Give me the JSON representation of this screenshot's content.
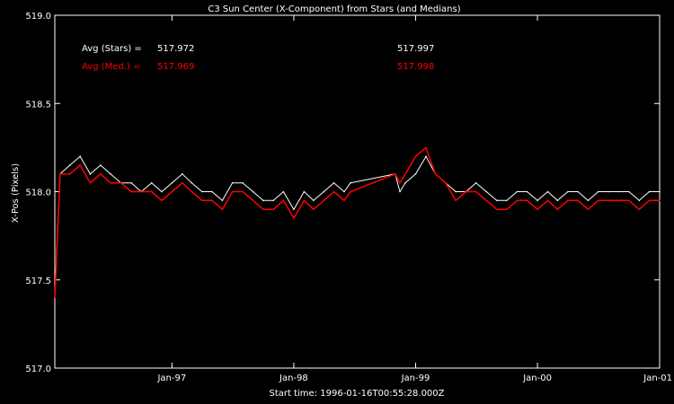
{
  "chart_data": {
    "type": "line",
    "title": "C3 Sun Center (X-Component) from Stars (and Medians)",
    "ylabel": "X-Pos (Pixels)",
    "xlabel": "Start time: 1996-01-16T00:55:28.000Z",
    "ylim": [
      517.0,
      519.0
    ],
    "yticks": [
      "517.0",
      "517.5",
      "518.0",
      "518.5",
      "519.0"
    ],
    "ytick_values": [
      517.0,
      517.5,
      518.0,
      518.5,
      519.0
    ],
    "xlim": [
      "1996-01-16",
      "2001-01-01"
    ],
    "xticks": [
      "Jan-97",
      "Jan-98",
      "Jan-99",
      "Jan-00",
      "Jan-01"
    ],
    "xtick_dates": [
      "1997-01-01",
      "1998-01-01",
      "1999-01-01",
      "2000-01-01",
      "2001-01-01"
    ],
    "annotations": {
      "stars_label": "Avg (Stars) =",
      "stars_value_1": "517.972",
      "stars_value_2": "517.997",
      "medians_label": "Avg (Med.) =",
      "medians_value_1": "517.969",
      "medians_value_2": "517.998"
    },
    "series": [
      {
        "color": "#ffffff",
        "x": [
          "1996-01-16",
          "1996-02-01",
          "1996-03-01",
          "1996-04-01",
          "1996-05-01",
          "1996-06-01",
          "1996-07-01",
          "1996-08-01",
          "1996-09-01",
          "1996-10-01",
          "1996-11-01",
          "1996-12-01",
          "1997-01-01",
          "1997-02-01",
          "1997-03-01",
          "1997-04-01",
          "1997-05-01",
          "1997-06-01",
          "1997-07-01",
          "1997-08-01",
          "1997-09-01",
          "1997-10-01",
          "1997-11-01",
          "1997-12-01",
          "1998-01-01",
          "1998-02-01",
          "1998-03-01",
          "1998-04-01",
          "1998-05-01",
          "1998-06-01",
          "1998-06-20",
          "1998-11-01",
          "1998-11-15",
          "1998-12-01",
          "1999-01-01",
          "1999-02-01",
          "1999-03-01",
          "1999-04-01",
          "1999-05-01",
          "1999-06-01",
          "1999-07-01",
          "1999-08-01",
          "1999-09-01",
          "1999-10-01",
          "1999-11-01",
          "1999-12-01",
          "2000-01-01",
          "2000-02-01",
          "2000-03-01",
          "2000-04-01",
          "2000-05-01",
          "2000-06-01",
          "2000-07-01",
          "2000-08-01",
          "2000-09-01",
          "2000-10-01",
          "2000-11-01",
          "2000-12-01",
          "2001-01-01"
        ],
        "values": [
          517.4,
          518.1,
          518.15,
          518.2,
          518.1,
          518.15,
          518.1,
          518.05,
          518.05,
          518.0,
          518.05,
          518.0,
          518.05,
          518.1,
          518.05,
          518.0,
          518.0,
          517.95,
          518.05,
          518.05,
          518.0,
          517.95,
          517.95,
          518.0,
          517.9,
          518.0,
          517.95,
          518.0,
          518.05,
          518.0,
          518.05,
          518.1,
          518.0,
          518.05,
          518.1,
          518.2,
          518.1,
          518.05,
          518.0,
          518.0,
          518.05,
          518.0,
          517.95,
          517.95,
          518.0,
          518.0,
          517.95,
          518.0,
          517.95,
          518.0,
          518.0,
          517.95,
          518.0,
          518.0,
          518.0,
          518.0,
          517.95,
          518.0,
          518.0
        ]
      },
      {
        "color": "#ff0000",
        "x": [
          "1996-01-16",
          "1996-02-01",
          "1996-03-01",
          "1996-04-01",
          "1996-05-01",
          "1996-06-01",
          "1996-07-01",
          "1996-08-01",
          "1996-09-01",
          "1996-10-01",
          "1996-11-01",
          "1996-12-01",
          "1997-01-01",
          "1997-02-01",
          "1997-03-01",
          "1997-04-01",
          "1997-05-01",
          "1997-06-01",
          "1997-07-01",
          "1997-08-01",
          "1997-09-01",
          "1997-10-01",
          "1997-11-01",
          "1997-12-01",
          "1998-01-01",
          "1998-02-01",
          "1998-03-01",
          "1998-04-01",
          "1998-05-01",
          "1998-06-01",
          "1998-06-20",
          "1998-11-01",
          "1998-11-15",
          "1998-12-01",
          "1999-01-01",
          "1999-02-01",
          "1999-03-01",
          "1999-04-01",
          "1999-05-01",
          "1999-06-01",
          "1999-07-01",
          "1999-08-01",
          "1999-09-01",
          "1999-10-01",
          "1999-11-01",
          "1999-12-01",
          "2000-01-01",
          "2000-02-01",
          "2000-03-01",
          "2000-04-01",
          "2000-05-01",
          "2000-06-01",
          "2000-07-01",
          "2000-08-01",
          "2000-09-01",
          "2000-10-01",
          "2000-11-01",
          "2000-12-01",
          "2001-01-01"
        ],
        "values": [
          517.4,
          518.1,
          518.1,
          518.15,
          518.05,
          518.1,
          518.05,
          518.05,
          518.0,
          518.0,
          518.0,
          517.95,
          518.0,
          518.05,
          518.0,
          517.95,
          517.95,
          517.9,
          518.0,
          518.0,
          517.95,
          517.9,
          517.9,
          517.95,
          517.85,
          517.95,
          517.9,
          517.95,
          518.0,
          517.95,
          518.0,
          518.1,
          518.05,
          518.1,
          518.2,
          518.25,
          518.1,
          518.05,
          517.95,
          518.0,
          518.0,
          517.95,
          517.9,
          517.9,
          517.95,
          517.95,
          517.9,
          517.95,
          517.9,
          517.95,
          517.95,
          517.9,
          517.95,
          517.95,
          517.95,
          517.95,
          517.9,
          517.95,
          517.95
        ]
      }
    ]
  }
}
